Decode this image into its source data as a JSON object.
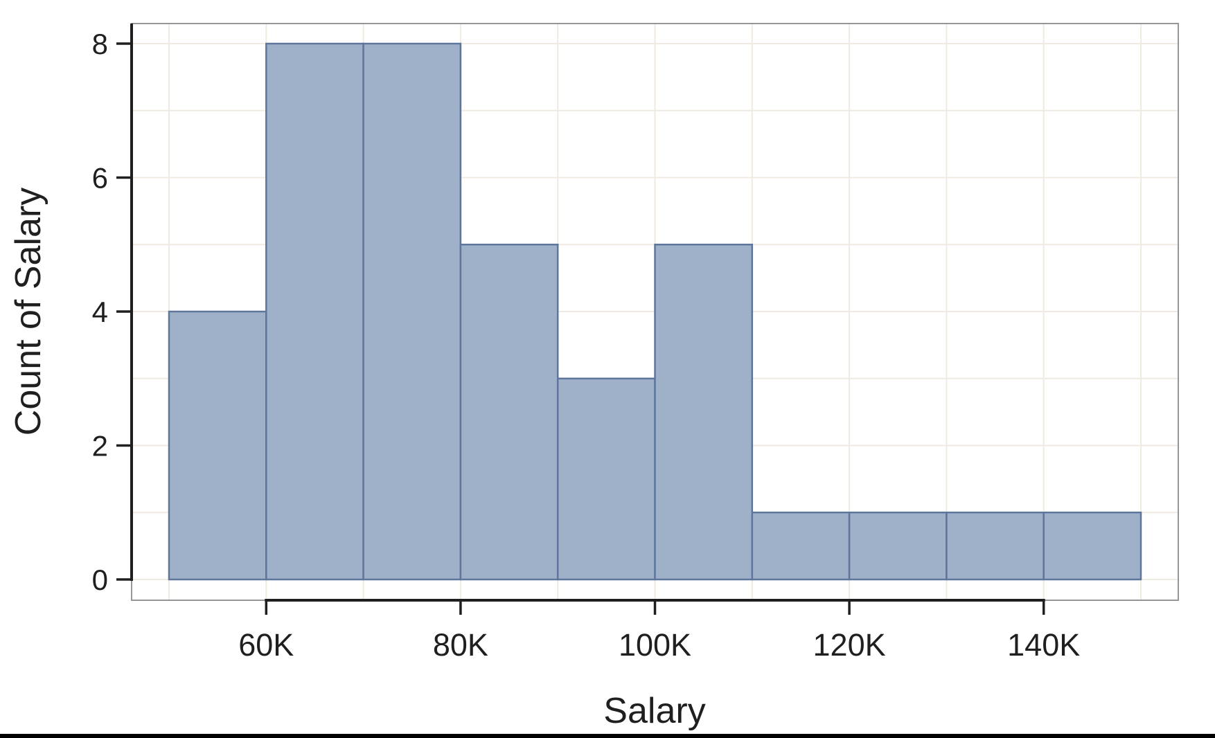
{
  "chart_data": {
    "type": "bar",
    "subtype": "histogram",
    "title": "",
    "xlabel": "Salary",
    "ylabel": "Count of Salary",
    "x_domain": [
      50000,
      150000
    ],
    "y_domain": [
      0,
      8
    ],
    "bin_width": 10000,
    "bin_edges": [
      50000,
      60000,
      70000,
      80000,
      90000,
      100000,
      110000,
      120000,
      130000,
      140000,
      150000
    ],
    "bin_labels": [
      "50K-60K",
      "60K-70K",
      "70K-80K",
      "80K-90K",
      "90K-100K",
      "100K-110K",
      "110K-120K",
      "120K-130K",
      "130K-140K",
      "140K-150K"
    ],
    "counts": [
      4,
      8,
      8,
      5,
      3,
      5,
      1,
      1,
      1,
      1
    ],
    "total_count": 37,
    "x_ticks": [
      {
        "value": 60000,
        "label": "60K"
      },
      {
        "value": 80000,
        "label": "80K"
      },
      {
        "value": 100000,
        "label": "100K"
      },
      {
        "value": 120000,
        "label": "120K"
      },
      {
        "value": 140000,
        "label": "140K"
      }
    ],
    "y_ticks": [
      {
        "value": 0,
        "label": "0"
      },
      {
        "value": 2,
        "label": "2"
      },
      {
        "value": 4,
        "label": "4"
      },
      {
        "value": 6,
        "label": "6"
      },
      {
        "value": 8,
        "label": "8"
      }
    ],
    "grid": true,
    "grid_step_x": 10000,
    "grid_step_y": 1,
    "legend": false,
    "colors": {
      "bar_fill": "#9fb1c9",
      "bar_stroke": "#5e769c",
      "gridline": "#f0ebe2",
      "plot_border": "#969696",
      "axis_line": "#1f1f1f",
      "text": "#1f1f1f",
      "background": "#ffffff",
      "bottom_strip": "#000000"
    }
  }
}
